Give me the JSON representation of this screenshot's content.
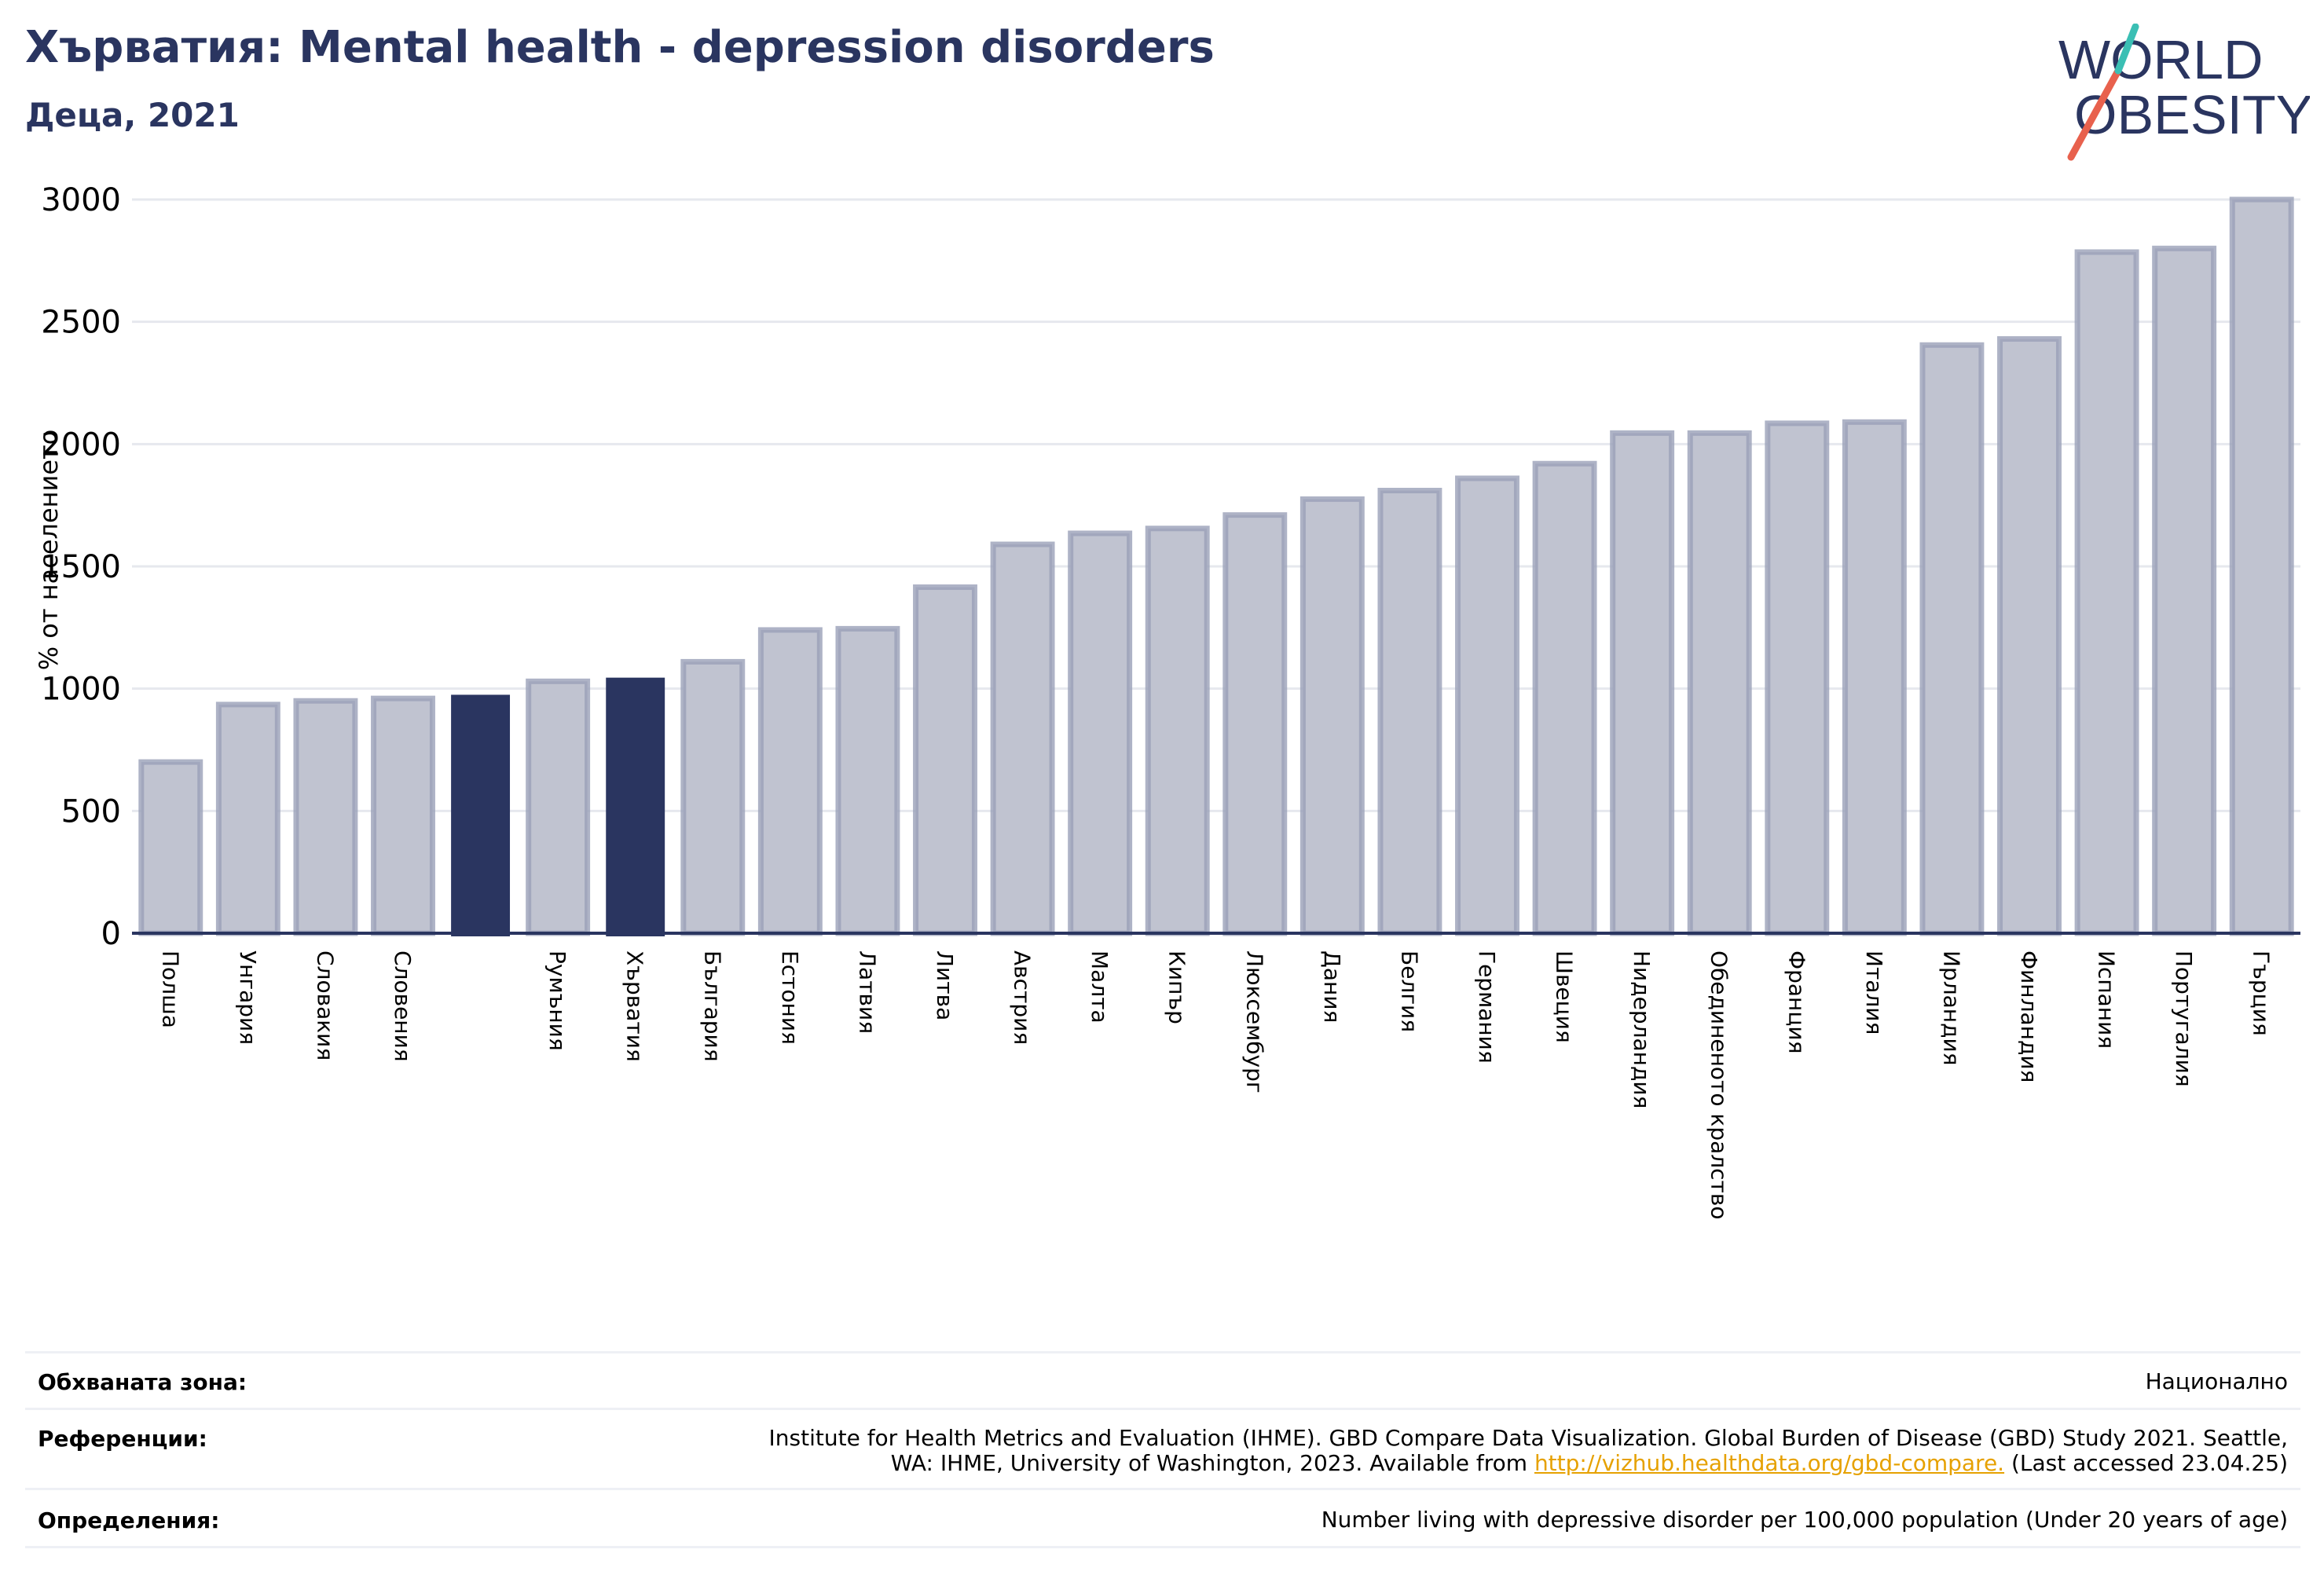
{
  "header": {
    "title": "Хърватия: Mental health - depression disorders",
    "subtitle": "Деца, 2021"
  },
  "logo": {
    "line1": "WORLD",
    "line2": "OBESITY",
    "colors": {
      "text": "#2a3560",
      "slash_red": "#e8614d",
      "slash_teal": "#3bbfb4"
    }
  },
  "chart_data": {
    "type": "bar",
    "ylabel": "% от населението",
    "xlabel": "",
    "ylim": [
      0,
      3000
    ],
    "yticks": [
      0,
      500,
      1000,
      1500,
      2000,
      2500,
      3000
    ],
    "grid": true,
    "categories": [
      "Полша",
      "Унгария",
      "Словакия",
      "Словения",
      "",
      "Румъния",
      "Хърватия",
      "България",
      "Естония",
      "Латвия",
      "Литва",
      "Австрия",
      "Малта",
      "Кипър",
      "Люксембург",
      "Дания",
      "Белгия",
      "Германия",
      "Швеция",
      "Нидерландия",
      "Обединеното кралство",
      "Франция",
      "Италия",
      "Ирландия",
      "Финландия",
      "Испания",
      "Португалия",
      "Гърция"
    ],
    "values": [
      700,
      935,
      950,
      960,
      975,
      1030,
      1045,
      1110,
      1240,
      1245,
      1415,
      1590,
      1635,
      1655,
      1710,
      1775,
      1810,
      1860,
      1920,
      2045,
      2045,
      2085,
      2090,
      2405,
      2430,
      2785,
      2800,
      3000
    ],
    "highlighted": [
      4,
      6
    ],
    "colors": {
      "bar": "#c0c3d0",
      "bar_edge": "#9aa0b8",
      "highlight": "#2a3560",
      "axis": "#2a3560",
      "grid": "#e6e8ee"
    }
  },
  "info": {
    "coverage_label": "Обхваната зона:",
    "coverage_value": "Национално",
    "references_label": "Референции:",
    "references_line1": "Institute for Health Metrics and Evaluation (IHME). GBD Compare Data Visualization. Global Burden of Disease (GBD) Study 2021. Seattle,",
    "references_line2_pre": "WA: IHME, University of Washington, 2023. Available from ",
    "references_link": "http://vizhub.healthdata.org/gbd-compare.",
    "references_line2_post": " (Last accessed 23.04.25)",
    "definitions_label": "Определения:",
    "definitions_value": "Number living with depressive disorder per 100,000 population (Under 20 years of age)"
  }
}
